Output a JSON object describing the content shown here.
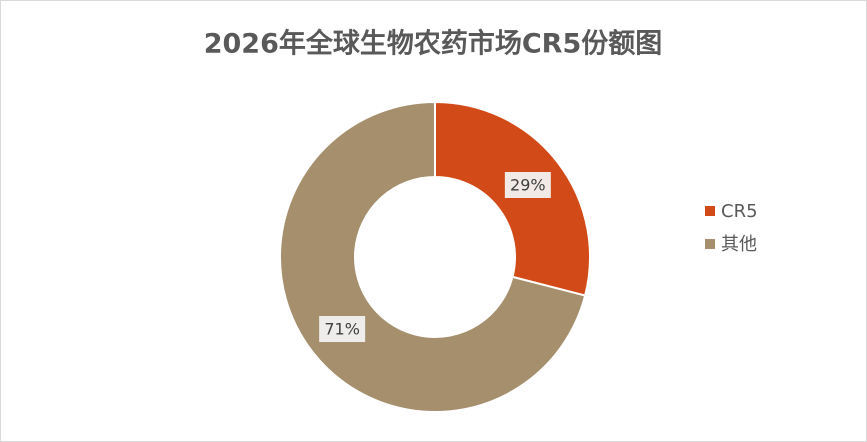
{
  "chart_data": {
    "type": "donut",
    "title": "2026年全球生物农药市场CR5份额图",
    "categories": [
      "CR5",
      "其他"
    ],
    "values": [
      29,
      71
    ],
    "value_labels": [
      "29%",
      "71%"
    ],
    "colors": [
      "#d24a17",
      "#a58f6c"
    ],
    "legend_position": "right"
  }
}
